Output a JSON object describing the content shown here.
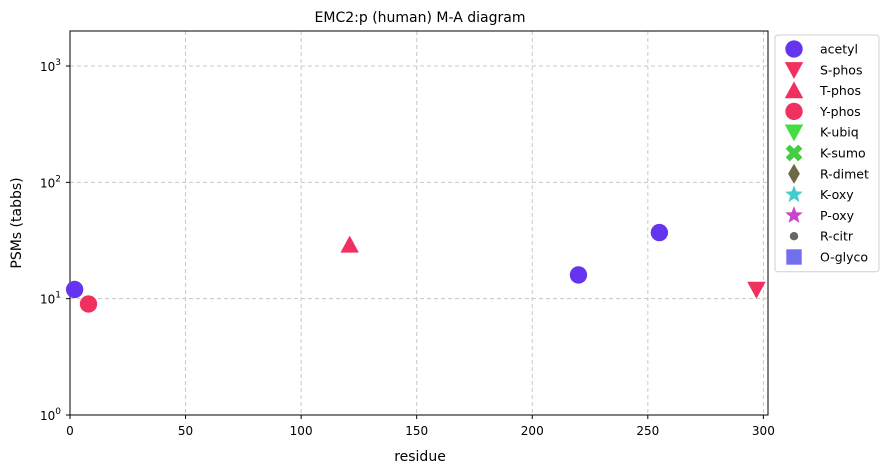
{
  "chart_data": {
    "type": "scatter",
    "title": "EMC2:p (human) M-A diagram",
    "xlabel": "residue",
    "ylabel": "PSMs (tabbs)",
    "xlim": [
      0,
      302
    ],
    "ylim": [
      1,
      2000
    ],
    "y_scale": "log",
    "x_ticks": [
      0,
      50,
      100,
      150,
      200,
      250,
      300
    ],
    "y_ticks": [
      {
        "value": 1,
        "mantissa": "10",
        "exp": "0"
      },
      {
        "value": 10,
        "mantissa": "10",
        "exp": "1"
      },
      {
        "value": 100,
        "mantissa": "10",
        "exp": "2"
      },
      {
        "value": 1000,
        "mantissa": "10",
        "exp": "3"
      }
    ],
    "grid": true,
    "legend_position": "outside-right",
    "series": [
      {
        "name": "acetyl",
        "marker": "circle",
        "color": "#6633ee",
        "points": [
          {
            "x": 2,
            "y": 12
          },
          {
            "x": 220,
            "y": 16
          },
          {
            "x": 255,
            "y": 37
          }
        ]
      },
      {
        "name": "S-phos",
        "marker": "triangle-down",
        "color": "#f0305f",
        "points": [
          {
            "x": 297,
            "y": 12
          }
        ]
      },
      {
        "name": "T-phos",
        "marker": "triangle-up",
        "color": "#f0305f",
        "points": [
          {
            "x": 121,
            "y": 29
          }
        ]
      },
      {
        "name": "Y-phos",
        "marker": "circle",
        "color": "#f0305f",
        "points": [
          {
            "x": 8,
            "y": 9
          }
        ]
      },
      {
        "name": "K-ubiq",
        "marker": "triangle-down",
        "color": "#44dd44",
        "points": []
      },
      {
        "name": "K-sumo",
        "marker": "x",
        "color": "#44cc44",
        "points": []
      },
      {
        "name": "R-dimet",
        "marker": "diamond",
        "color": "#6b6b44",
        "points": []
      },
      {
        "name": "K-oxy",
        "marker": "star",
        "color": "#44cccc",
        "points": []
      },
      {
        "name": "P-oxy",
        "marker": "star",
        "color": "#cc44cc",
        "points": []
      },
      {
        "name": "R-citr",
        "marker": "dot",
        "color": "#666666",
        "points": []
      },
      {
        "name": "O-glyco",
        "marker": "square",
        "color": "#7070ee",
        "points": []
      }
    ]
  }
}
